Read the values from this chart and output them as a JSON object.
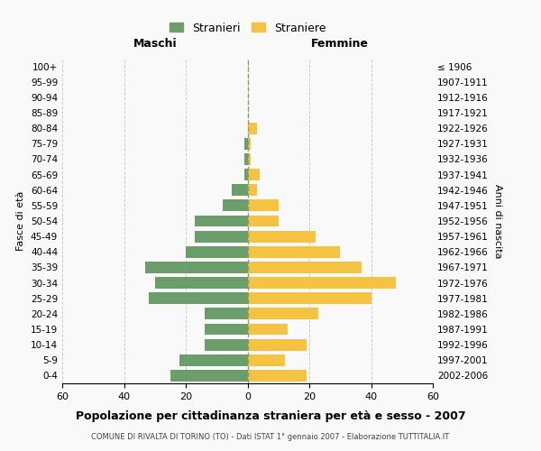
{
  "age_groups": [
    "0-4",
    "5-9",
    "10-14",
    "15-19",
    "20-24",
    "25-29",
    "30-34",
    "35-39",
    "40-44",
    "45-49",
    "50-54",
    "55-59",
    "60-64",
    "65-69",
    "70-74",
    "75-79",
    "80-84",
    "85-89",
    "90-94",
    "95-99",
    "100+"
  ],
  "birth_years": [
    "2002-2006",
    "1997-2001",
    "1992-1996",
    "1987-1991",
    "1982-1986",
    "1977-1981",
    "1972-1976",
    "1967-1971",
    "1962-1966",
    "1957-1961",
    "1952-1956",
    "1947-1951",
    "1942-1946",
    "1937-1941",
    "1932-1936",
    "1927-1931",
    "1922-1926",
    "1917-1921",
    "1912-1916",
    "1907-1911",
    "≤ 1906"
  ],
  "males": [
    25,
    22,
    14,
    14,
    14,
    32,
    30,
    33,
    20,
    17,
    17,
    8,
    5,
    1,
    1,
    1,
    0,
    0,
    0,
    0,
    0
  ],
  "females": [
    19,
    12,
    19,
    13,
    23,
    40,
    48,
    37,
    30,
    22,
    10,
    10,
    3,
    4,
    1,
    1,
    3,
    0,
    0,
    0,
    0
  ],
  "male_color": "#6b9e6b",
  "female_color": "#f5c242",
  "dashed_line_color": "#999966",
  "background_color": "#f9f9f9",
  "grid_color": "#cccccc",
  "title": "Popolazione per cittadinanza straniera per età e sesso - 2007",
  "subtitle": "COMUNE DI RIVALTA DI TORINO (TO) - Dati ISTAT 1° gennaio 2007 - Elaborazione TUTTITALIA.IT",
  "xlabel_left": "Maschi",
  "xlabel_right": "Femmine",
  "ylabel_left": "Fasce di età",
  "ylabel_right": "Anni di nascita",
  "legend_male": "Stranieri",
  "legend_female": "Straniere",
  "xlim": 60
}
